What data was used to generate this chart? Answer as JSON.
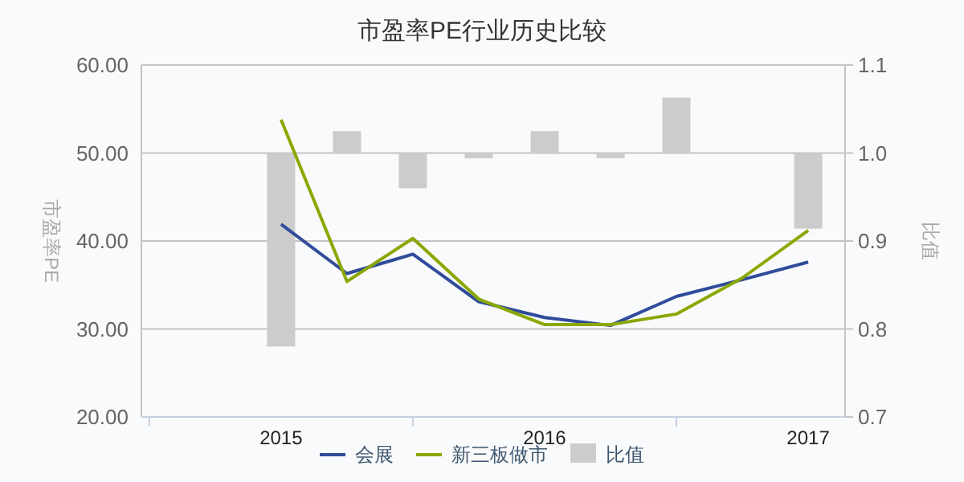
{
  "chart_data": {
    "type": "line",
    "title": "市盈率PE行业历史比较",
    "ylabel": "市盈率PE",
    "y2label": "比值",
    "categories": [
      "2015",
      null,
      null,
      null,
      "2016",
      null,
      null,
      null,
      "2017"
    ],
    "series": [
      {
        "name": "会展",
        "color": "#2f4b9a",
        "values": [
          41.9,
          36.3,
          38.5,
          33.1,
          31.3,
          30.4,
          33.7,
          35.6,
          37.6
        ]
      },
      {
        "name": "新三板做市",
        "color": "#8aa800",
        "values": [
          53.8,
          35.4,
          40.3,
          33.4,
          30.5,
          30.5,
          31.7,
          35.8,
          41.2
        ]
      },
      {
        "name": "比值",
        "type": "bar",
        "axis": "y2",
        "color": "#cccccc",
        "base": [
          1,
          1,
          1,
          1,
          1,
          1,
          1,
          null,
          1
        ],
        "values": [
          -0.22,
          0.025,
          -0.04,
          -0.006,
          0.025,
          -0.006,
          0.063,
          null,
          -0.086
        ]
      }
    ],
    "ylim": [
      20,
      60
    ],
    "yticks": [
      {
        "value": 20,
        "label": "20.00"
      },
      {
        "value": 30,
        "label": "30.00"
      },
      {
        "value": 40,
        "label": "40.00"
      },
      {
        "value": 50,
        "label": "50.00"
      },
      {
        "value": 60,
        "label": "60.00"
      }
    ],
    "y2lim": [
      0.7,
      1.1
    ],
    "y2ticks": [
      0.7,
      0.8,
      0.9,
      {
        "value": 1.0,
        "label": "1.0"
      },
      1.1
    ],
    "grid": "y",
    "legend": "bottom",
    "marker": "none"
  }
}
